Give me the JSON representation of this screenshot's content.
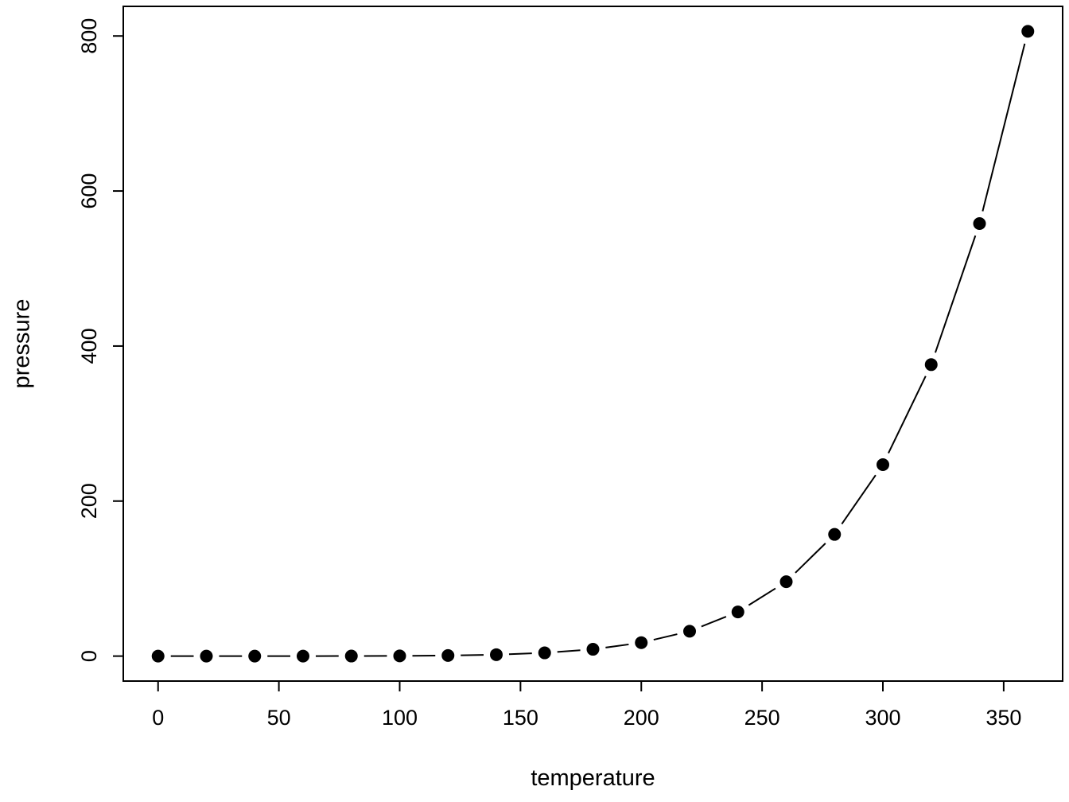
{
  "chart_data": {
    "type": "line",
    "title": "",
    "xlabel": "temperature",
    "ylabel": "pressure",
    "x": [
      0,
      20,
      40,
      60,
      80,
      100,
      120,
      140,
      160,
      180,
      200,
      220,
      240,
      260,
      280,
      300,
      320,
      340,
      360
    ],
    "y": [
      0.0002,
      0.0012,
      0.006,
      0.03,
      0.09,
      0.27,
      0.75,
      1.85,
      4.2,
      8.8,
      17.3,
      32.1,
      57.0,
      96.0,
      157.0,
      247.0,
      376.0,
      558.0,
      806.0
    ],
    "x_ticks": [
      0,
      50,
      100,
      150,
      200,
      250,
      300,
      350
    ],
    "y_ticks": [
      0,
      200,
      400,
      600,
      800
    ],
    "xlim": [
      -14.4,
      374.4
    ],
    "ylim": [
      -32.2,
      838.2
    ],
    "grid": false,
    "legend": "none",
    "marker": "filled-circle",
    "line_style": "both-points-and-segments",
    "point_color": "#000000",
    "line_color": "#000000",
    "axis_color": "#000000",
    "background_color": "#ffffff"
  }
}
